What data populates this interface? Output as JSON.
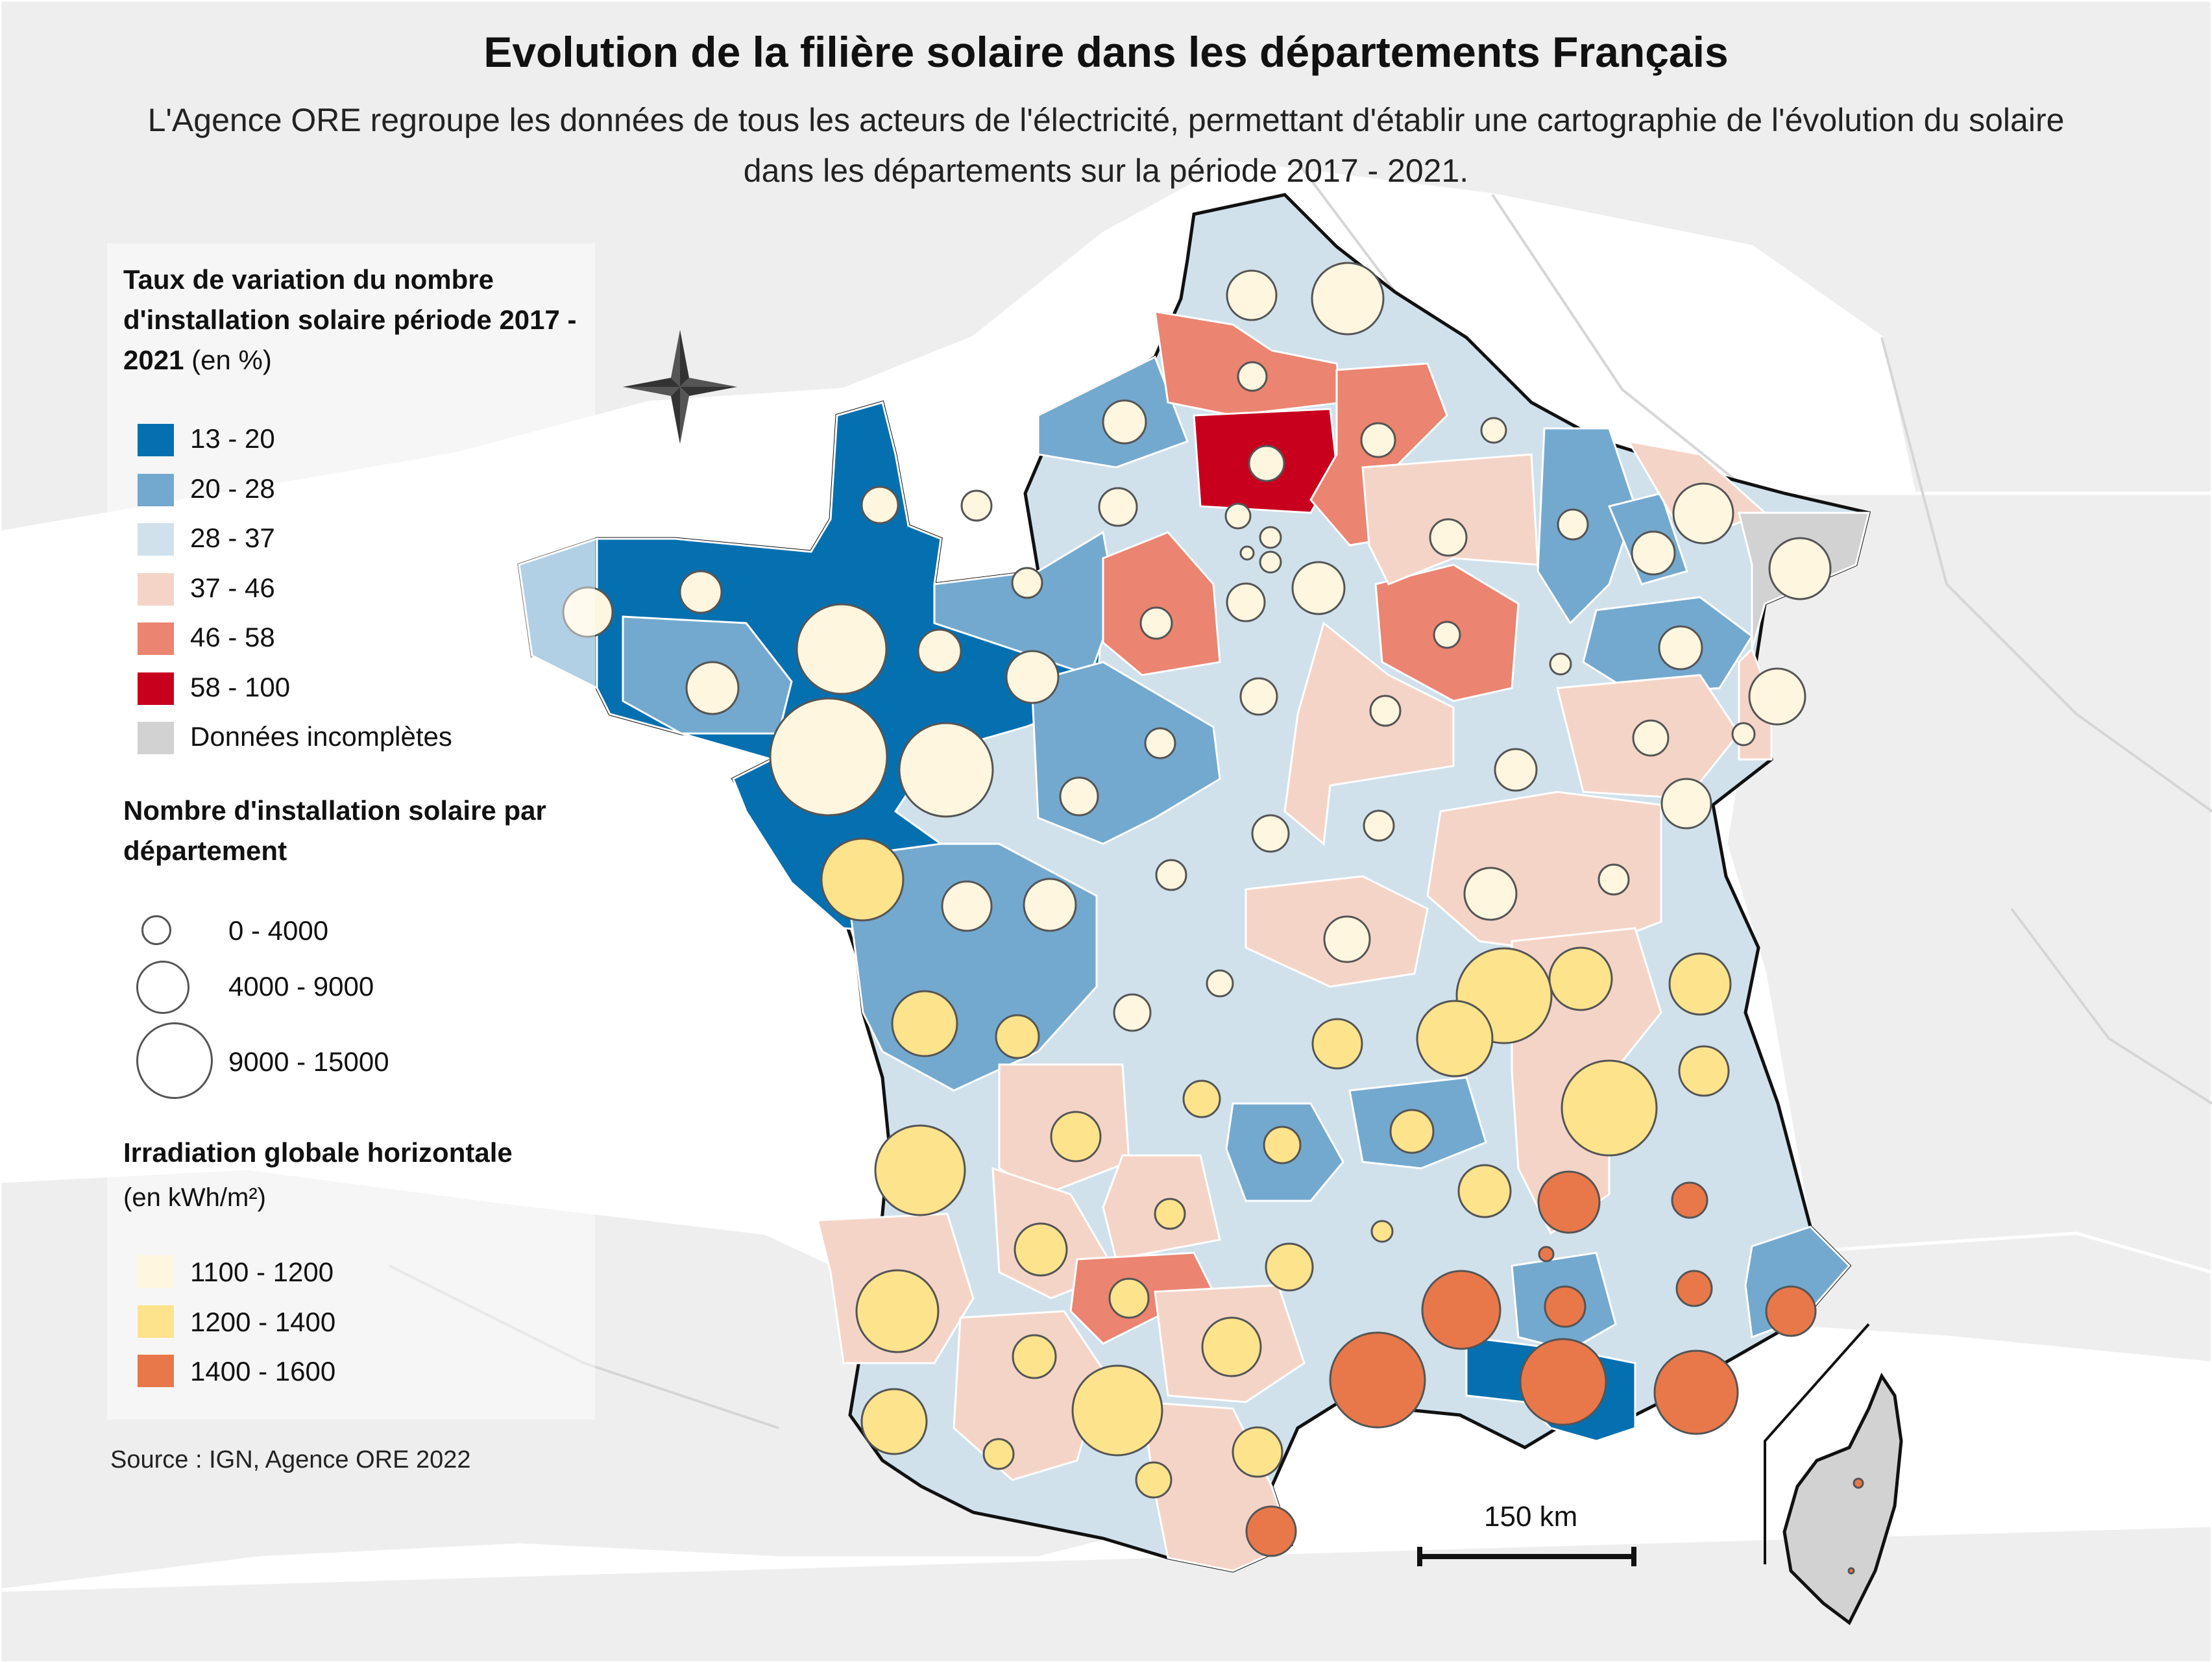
{
  "title": "Evolution de la filière solaire dans les départements Français",
  "subtitle": "L'Agence ORE regroupe les données de tous les acteurs de l'électricité, permettant d'établir une cartographie de l'évolution du solaire dans les départements sur la période 2017 - 2021.",
  "legend": {
    "variation": {
      "heading": "Taux de variation du nombre d'installation solaire période 2017 - 2021",
      "unit": "(en %)",
      "classes": [
        {
          "label": "13 - 20",
          "color": "#0570b0"
        },
        {
          "label": "20 - 28",
          "color": "#74a9cf"
        },
        {
          "label": "28 - 37",
          "color": "#d0e1ec"
        },
        {
          "label": "37 - 46",
          "color": "#f5d4c8"
        },
        {
          "label": "46 - 58",
          "color": "#eb8470"
        },
        {
          "label": "58 - 100",
          "color": "#c8001e"
        },
        {
          "label": "Données incomplètes",
          "color": "#d2d2d2"
        }
      ]
    },
    "count": {
      "heading": "Nombre d'installation solaire par département",
      "classes": [
        {
          "label": "0 - 4000"
        },
        {
          "label": "4000 - 9000"
        },
        {
          "label": "9000 - 15000"
        }
      ]
    },
    "irradiation": {
      "heading": "Irradiation globale horizontale",
      "unit": "(en kWh/m²)",
      "classes": [
        {
          "label": "1100 - 1200",
          "color": "#fff6df"
        },
        {
          "label": "1200 - 1400",
          "color": "#fde38c"
        },
        {
          "label": "1400 - 1600",
          "color": "#e8784a"
        }
      ]
    }
  },
  "source": "Source : IGN, Agence ORE 2022",
  "scale_bar": "150 km"
}
